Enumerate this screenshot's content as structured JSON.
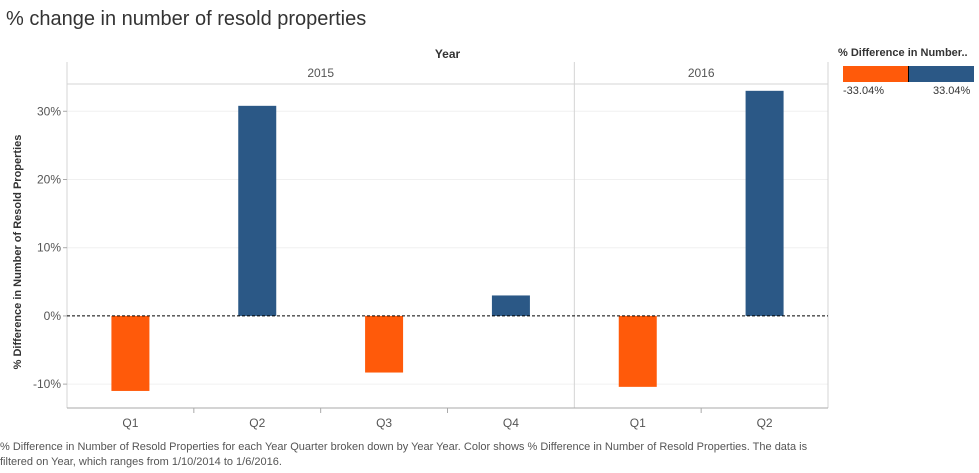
{
  "title": "% change in number of resold properties",
  "colors": {
    "negative": "#FF5A0A",
    "positive": "#2B5886"
  },
  "legend": {
    "title": "% Difference in Number..",
    "min_label": "-33.04%",
    "max_label": "33.04%"
  },
  "caption": "% Difference in Number of Resold Properties for each Year Quarter broken down by Year Year.  Color shows % Difference in Number of Resold Properties. The data is filtered on Year, which ranges from 1/10/2014 to 1/6/2016.",
  "chart_data": {
    "type": "bar",
    "title": "% change in number of resold properties",
    "column_header": "Year",
    "ylabel": "% Difference in Number of Resold Properties",
    "ylim": [
      -13.5,
      34
    ],
    "yticks": [
      {
        "value": 30,
        "label": "30%"
      },
      {
        "value": 20,
        "label": "20%"
      },
      {
        "value": 10,
        "label": "10%"
      },
      {
        "value": 0,
        "label": "0%"
      },
      {
        "value": -10,
        "label": "-10%"
      }
    ],
    "reference_line": 0,
    "panels": [
      {
        "year": "2015",
        "categories": [
          "Q1",
          "Q2",
          "Q3",
          "Q4"
        ],
        "values": [
          -11.0,
          30.8,
          -8.3,
          3.0
        ]
      },
      {
        "year": "2016",
        "categories": [
          "Q1",
          "Q2"
        ],
        "values": [
          -10.4,
          33.0
        ]
      }
    ]
  }
}
